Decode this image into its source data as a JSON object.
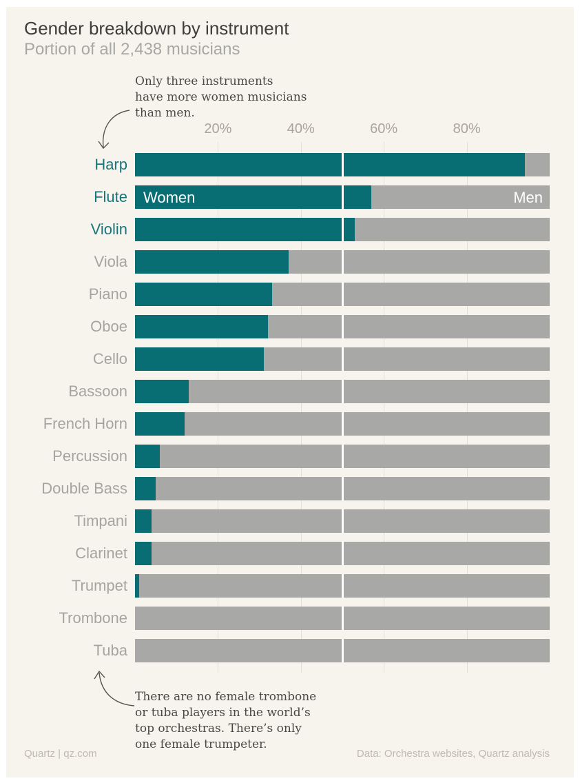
{
  "title": "Gender breakdown by instrument",
  "subtitle": "Portion of all 2,438 musicians",
  "annotations": {
    "top_lines": [
      "Only three instruments",
      "have more women musicians",
      "than men."
    ],
    "bottom_lines": [
      "There are no female trombone",
      "or tuba players in the world’s",
      "top orchestras. There’s only",
      "one female trumpeter."
    ]
  },
  "legend": {
    "women": "Women",
    "men": "Men"
  },
  "footer": {
    "left": "Quartz | qz.com",
    "right": "Data: Orchestra websites, Quartz analysis"
  },
  "colors": {
    "background": "#f7f4ee",
    "women_bar": "#096e74",
    "men_bar": "#a8a8a6",
    "women_label": "#17767c",
    "gray_label": "#a7a49f",
    "divider": "#ffffff"
  },
  "chart_data": {
    "type": "bar",
    "orientation": "horizontal",
    "stacked": true,
    "title": "Gender breakdown by instrument",
    "subtitle": "Portion of all 2,438 musicians",
    "categories": [
      "Harp",
      "Flute",
      "Violin",
      "Viola",
      "Piano",
      "Oboe",
      "Cello",
      "Bassoon",
      "French Horn",
      "Percussion",
      "Double Bass",
      "Timpani",
      "Clarinet",
      "Trumpet",
      "Trombone",
      "Tuba"
    ],
    "series": [
      {
        "name": "Women",
        "values": [
          94,
          57,
          53,
          37,
          33,
          32,
          31,
          13,
          12,
          6,
          5,
          4,
          4,
          1,
          0,
          0
        ]
      },
      {
        "name": "Men",
        "values": [
          6,
          43,
          47,
          63,
          67,
          68,
          69,
          87,
          88,
          94,
          95,
          96,
          96,
          99,
          100,
          100
        ]
      }
    ],
    "xlim": [
      0,
      100
    ],
    "x_ticks": [
      "20%",
      "40%",
      "60%",
      "80%"
    ],
    "x_gridlines_pct": [
      20,
      40,
      60,
      80
    ],
    "reference_line_pct": 50,
    "inline_label_row": "Flute",
    "grid": true,
    "legend_position": "inside-bar"
  }
}
